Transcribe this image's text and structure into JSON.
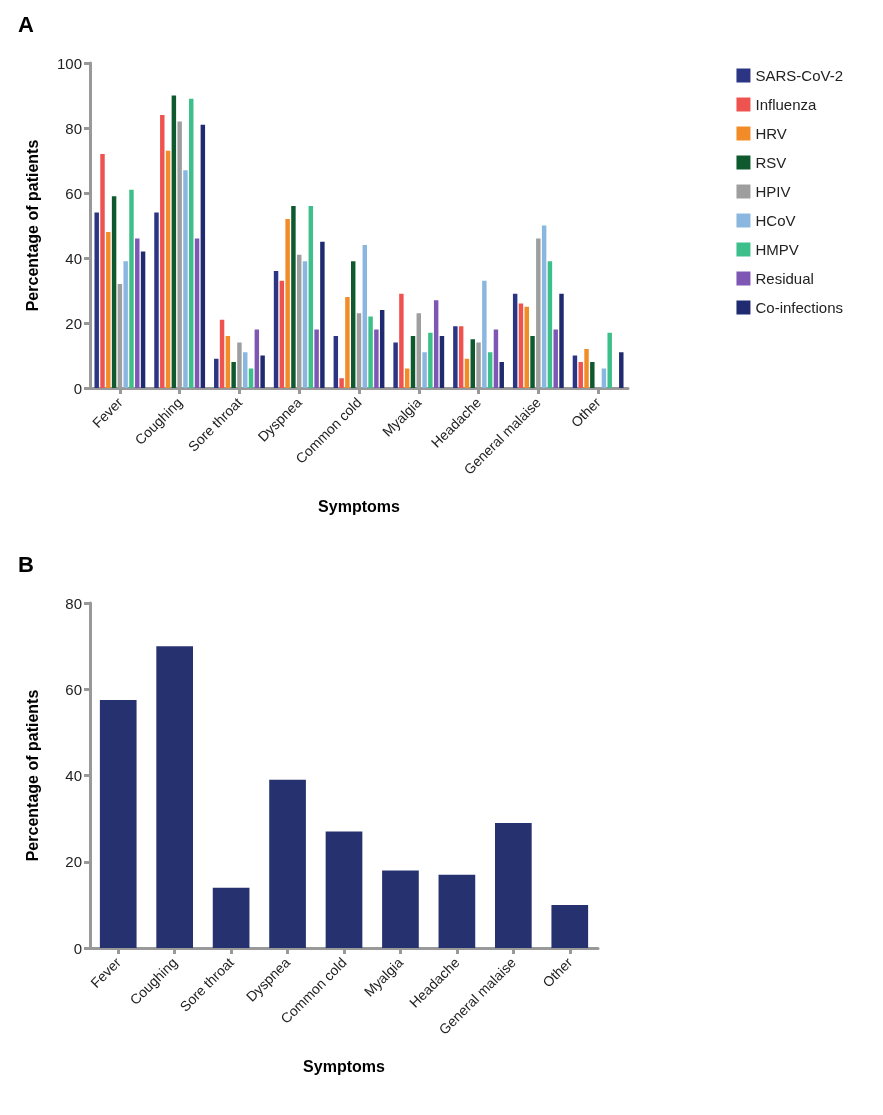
{
  "chart_data": [
    {
      "type": "bar",
      "title": "A",
      "xlabel": "Symptoms",
      "ylabel": "Percentage of patients",
      "categories": [
        "Fever",
        "Coughing",
        "Sore throat",
        "Dyspnea",
        "Common cold",
        "Myalgia",
        "Headache",
        "General malaise",
        "Other"
      ],
      "ylim": [
        0,
        100
      ],
      "yticks": [
        0,
        20,
        40,
        60,
        80,
        100
      ],
      "grid": false,
      "legend": "right",
      "series": [
        {
          "name": "SARS-CoV-2",
          "color": "#2b3584",
          "values": [
            54,
            54,
            9,
            36,
            16,
            14,
            19,
            29,
            10
          ]
        },
        {
          "name": "Influenza",
          "color": "#ef5350",
          "values": [
            72,
            84,
            21,
            33,
            3,
            29,
            19,
            26,
            8
          ]
        },
        {
          "name": "HRV",
          "color": "#f28c28",
          "values": [
            48,
            73,
            16,
            52,
            28,
            6,
            9,
            25,
            12
          ]
        },
        {
          "name": "RSV",
          "color": "#0e5a2e",
          "values": [
            59,
            90,
            8,
            56,
            39,
            16,
            15,
            16,
            8
          ]
        },
        {
          "name": "HPIV",
          "color": "#9e9e9e",
          "values": [
            32,
            82,
            14,
            41,
            23,
            23,
            14,
            46,
            0
          ]
        },
        {
          "name": "HCoV",
          "color": "#8ab7e0",
          "values": [
            39,
            67,
            11,
            39,
            44,
            11,
            33,
            50,
            6
          ]
        },
        {
          "name": "HMPV",
          "color": "#3cbf8a",
          "values": [
            61,
            89,
            6,
            56,
            22,
            17,
            11,
            39,
            17
          ]
        },
        {
          "name": "Residual",
          "color": "#7e57b5",
          "values": [
            46,
            46,
            18,
            18,
            18,
            27,
            18,
            18,
            0
          ]
        },
        {
          "name": "Co-infections",
          "color": "#1f2a70",
          "values": [
            42,
            81,
            10,
            45,
            24,
            16,
            8,
            29,
            11
          ]
        }
      ]
    },
    {
      "type": "bar",
      "title": "B",
      "xlabel": "Symptoms",
      "ylabel": "Percentage of patients",
      "categories": [
        "Fever",
        "Coughing",
        "Sore throat",
        "Dyspnea",
        "Common cold",
        "Myalgia",
        "Headache",
        "General malaise",
        "Other"
      ],
      "ylim": [
        0,
        80
      ],
      "yticks": [
        0,
        20,
        40,
        60,
        80
      ],
      "grid": false,
      "legend": false,
      "series": [
        {
          "color": "#263270",
          "values": [
            57.5,
            70,
            14,
            39,
            27,
            18,
            17,
            29,
            10
          ]
        }
      ]
    }
  ]
}
